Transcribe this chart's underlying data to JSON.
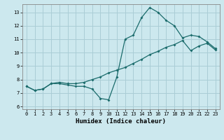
{
  "xlabel": "Humidex (Indice chaleur)",
  "bg_color": "#cce8ee",
  "grid_color": "#aacdd6",
  "line_color": "#1a6b6b",
  "xlim": [
    -0.5,
    23.5
  ],
  "ylim": [
    5.8,
    13.6
  ],
  "xticks": [
    0,
    1,
    2,
    3,
    4,
    5,
    6,
    7,
    8,
    9,
    10,
    11,
    12,
    13,
    14,
    15,
    16,
    17,
    18,
    19,
    20,
    21,
    22,
    23
  ],
  "yticks": [
    6,
    7,
    8,
    9,
    10,
    11,
    12,
    13
  ],
  "line1_x": [
    0,
    1,
    2,
    3,
    4,
    5,
    6,
    7,
    8,
    9,
    10,
    11,
    12,
    13,
    14,
    15,
    16,
    17,
    18,
    19,
    20,
    21,
    22,
    23
  ],
  "line1_y": [
    7.5,
    7.2,
    7.3,
    7.7,
    7.7,
    7.6,
    7.5,
    7.5,
    7.3,
    6.6,
    6.5,
    8.2,
    11.0,
    11.3,
    12.6,
    13.35,
    13.0,
    12.4,
    12.0,
    11.1,
    11.3,
    11.2,
    10.8,
    10.3
  ],
  "line2_x": [
    0,
    1,
    2,
    3,
    4,
    5,
    6,
    7,
    8,
    9,
    10,
    11,
    12,
    13,
    14,
    15,
    16,
    17,
    18,
    19,
    20,
    21,
    22,
    23
  ],
  "line2_y": [
    7.5,
    7.2,
    7.3,
    7.7,
    7.8,
    7.7,
    7.7,
    7.8,
    8.0,
    8.2,
    8.5,
    8.7,
    8.9,
    9.2,
    9.5,
    9.85,
    10.1,
    10.4,
    10.6,
    10.9,
    10.15,
    10.5,
    10.7,
    10.2
  ],
  "xlabel_fontsize": 6.5,
  "tick_fontsize": 5.0,
  "marker_size": 2.0,
  "line_width": 0.9
}
